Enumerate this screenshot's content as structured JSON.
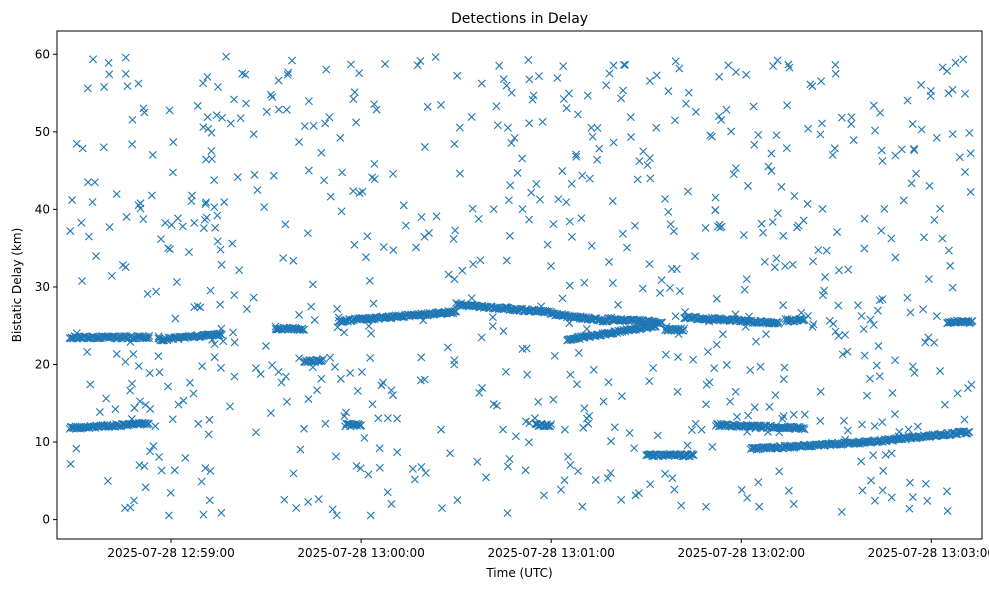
{
  "chart_data": {
    "type": "scatter",
    "title": "Detections in Delay",
    "xlabel": "Time (UTC)",
    "ylabel": "Bistatic Delay (km)",
    "x_is_datetime": true,
    "xlim": [
      "2025-07-28 12:58:24",
      "2025-07-28 13:03:16"
    ],
    "ylim": [
      -2.5,
      63
    ],
    "x_ticks": [
      {
        "t": "2025-07-28 12:59:00",
        "label": "2025-07-28 12:59:00"
      },
      {
        "t": "2025-07-28 13:00:00",
        "label": "2025-07-28 13:00:00"
      },
      {
        "t": "2025-07-28 13:01:00",
        "label": "2025-07-28 13:01:00"
      },
      {
        "t": "2025-07-28 13:02:00",
        "label": "2025-07-28 13:02:00"
      },
      {
        "t": "2025-07-28 13:03:00",
        "label": "2025-07-28 13:03:00"
      }
    ],
    "y_ticks": [
      0,
      10,
      20,
      30,
      40,
      50,
      60
    ],
    "grid": false,
    "legend": null,
    "marker": "x",
    "color": "#1f77b4",
    "tracks": [
      {
        "t_start": "2025-07-28 12:58:28",
        "t_end": "2025-07-28 12:58:53",
        "y_start": 23.5,
        "y_end": 23.5
      },
      {
        "t_start": "2025-07-28 12:58:28",
        "t_end": "2025-07-28 12:58:53",
        "y_start": 11.8,
        "y_end": 12.4
      },
      {
        "t_start": "2025-07-28 12:58:56",
        "t_end": "2025-07-28 12:59:16",
        "y_start": 23.2,
        "y_end": 23.9
      },
      {
        "t_start": "2025-07-28 12:59:33",
        "t_end": "2025-07-28 12:59:42",
        "y_start": 24.6,
        "y_end": 24.6
      },
      {
        "t_start": "2025-07-28 12:59:53",
        "t_end": "2025-07-28 13:00:30",
        "y_start": 25.6,
        "y_end": 26.8
      },
      {
        "t_start": "2025-07-28 13:00:30",
        "t_end": "2025-07-28 13:01:00",
        "y_start": 27.8,
        "y_end": 26.7
      },
      {
        "t_start": "2025-07-28 13:01:00",
        "t_end": "2025-07-28 13:01:18",
        "y_start": 26.5,
        "y_end": 25.6
      },
      {
        "t_start": "2025-07-28 13:01:05",
        "t_end": "2025-07-28 13:01:33",
        "y_start": 23.2,
        "y_end": 25.0
      },
      {
        "t_start": "2025-07-28 13:01:18",
        "t_end": "2025-07-28 13:01:35",
        "y_start": 25.9,
        "y_end": 25.4
      },
      {
        "t_start": "2025-07-28 13:01:36",
        "t_end": "2025-07-28 13:01:42",
        "y_start": 24.5,
        "y_end": 24.5
      },
      {
        "t_start": "2025-07-28 13:01:42",
        "t_end": "2025-07-28 13:02:12",
        "y_start": 26.1,
        "y_end": 25.3
      },
      {
        "t_start": "2025-07-28 13:02:14",
        "t_end": "2025-07-28 13:02:20",
        "y_start": 25.7,
        "y_end": 25.7
      },
      {
        "t_start": "2025-07-28 13:01:30",
        "t_end": "2025-07-28 13:01:45",
        "y_start": 8.3,
        "y_end": 8.3
      },
      {
        "t_start": "2025-07-28 13:01:52",
        "t_end": "2025-07-28 13:02:20",
        "y_start": 12.2,
        "y_end": 11.8
      },
      {
        "t_start": "2025-07-28 13:02:03",
        "t_end": "2025-07-28 13:02:40",
        "y_start": 9.1,
        "y_end": 10.0
      },
      {
        "t_start": "2025-07-28 13:02:40",
        "t_end": "2025-07-28 13:03:12",
        "y_start": 10.0,
        "y_end": 11.3
      },
      {
        "t_start": "2025-07-28 13:03:05",
        "t_end": "2025-07-28 13:03:13",
        "y_start": 25.5,
        "y_end": 25.5
      },
      {
        "t_start": "2025-07-28 12:59:42",
        "t_end": "2025-07-28 12:59:48",
        "y_start": 20.4,
        "y_end": 20.6
      },
      {
        "t_start": "2025-07-28 12:59:55",
        "t_end": "2025-07-28 13:00:00",
        "y_start": 12.2,
        "y_end": 12.2
      },
      {
        "t_start": "2025-07-28 13:00:55",
        "t_end": "2025-07-28 13:01:00",
        "y_start": 12.2,
        "y_end": 12.2
      }
    ],
    "clutter": {
      "count": 760,
      "t_range": [
        "2025-07-28 12:58:28",
        "2025-07-28 13:03:13"
      ],
      "y_range": [
        0.5,
        59.8
      ]
    }
  }
}
